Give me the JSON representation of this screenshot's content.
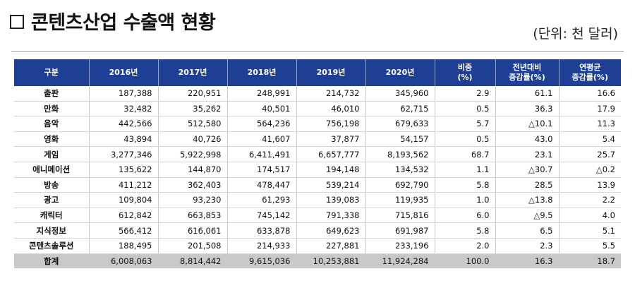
{
  "title": "콘텐츠산업 수출액 현황",
  "unit": "(단위: 천 달러)",
  "headers": [
    [
      "구분"
    ],
    [
      "2016년"
    ],
    [
      "2017년"
    ],
    [
      "2018년"
    ],
    [
      "2019년"
    ],
    [
      "2020년"
    ],
    [
      "비중",
      "(%)"
    ],
    [
      "전년대비",
      "증감률(%)"
    ],
    [
      "연평균",
      "증감률(%)"
    ]
  ],
  "rows": [
    [
      "출판",
      "187,388",
      "220,951",
      "248,991",
      "214,732",
      "345,960",
      "2.9",
      "61.1",
      "16.6"
    ],
    [
      "만화",
      "32,482",
      "35,262",
      "40,501",
      "46,010",
      "62,715",
      "0.5",
      "36.3",
      "17.9"
    ],
    [
      "음악",
      "442,566",
      "512,580",
      "564,236",
      "756,198",
      "679,633",
      "5.7",
      "△10.1",
      "11.3"
    ],
    [
      "영화",
      "43,894",
      "40,726",
      "41,607",
      "37,877",
      "54,157",
      "0.5",
      "43.0",
      "5.4"
    ],
    [
      "게임",
      "3,277,346",
      "5,922,998",
      "6,411,491",
      "6,657,777",
      "8,193,562",
      "68.7",
      "23.1",
      "25.7"
    ],
    [
      "애니메이션",
      "135,622",
      "144,870",
      "174,517",
      "194,148",
      "134,532",
      "1.1",
      "△30.7",
      "△0.2"
    ],
    [
      "방송",
      "411,212",
      "362,403",
      "478,447",
      "539,214",
      "692,790",
      "5.8",
      "28.5",
      "13.9"
    ],
    [
      "광고",
      "109,804",
      "93,230",
      "61,293",
      "139,083",
      "119,935",
      "1.0",
      "△13.8",
      "2.2"
    ],
    [
      "캐릭터",
      "612,842",
      "663,853",
      "745,142",
      "791,338",
      "715,816",
      "6.0",
      "△9.5",
      "4.0"
    ],
    [
      "지식정보",
      "566,412",
      "616,061",
      "633,878",
      "649,623",
      "691,987",
      "5.8",
      "6.5",
      "5.1"
    ],
    [
      "콘텐츠솔루션",
      "188,495",
      "201,508",
      "214,933",
      "227,881",
      "233,196",
      "2.0",
      "2.3",
      "5.5"
    ]
  ],
  "total": [
    "합계",
    "6,008,063",
    "8,814,442",
    "9,615,036",
    "10,253,881",
    "11,924,284",
    "100.0",
    "16.3",
    "18.7"
  ]
}
